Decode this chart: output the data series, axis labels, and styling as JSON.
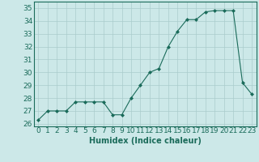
{
  "x": [
    0,
    1,
    2,
    3,
    4,
    5,
    6,
    7,
    8,
    9,
    10,
    11,
    12,
    13,
    14,
    15,
    16,
    17,
    18,
    19,
    20,
    21,
    22,
    23
  ],
  "y": [
    26.3,
    27.0,
    27.0,
    27.0,
    27.7,
    27.7,
    27.7,
    27.7,
    26.7,
    26.7,
    28.0,
    29.0,
    30.0,
    30.3,
    32.0,
    33.2,
    34.1,
    34.1,
    34.7,
    34.8,
    34.8,
    34.8,
    29.2,
    28.3
  ],
  "xlabel": "Humidex (Indice chaleur)",
  "ylim": [
    25.8,
    35.5
  ],
  "xlim": [
    -0.5,
    23.5
  ],
  "yticks": [
    26,
    27,
    28,
    29,
    30,
    31,
    32,
    33,
    34,
    35
  ],
  "xticks": [
    0,
    1,
    2,
    3,
    4,
    5,
    6,
    7,
    8,
    9,
    10,
    11,
    12,
    13,
    14,
    15,
    16,
    17,
    18,
    19,
    20,
    21,
    22,
    23
  ],
  "line_color": "#1a6b5a",
  "marker": "D",
  "marker_size": 2.0,
  "bg_color": "#cce8e8",
  "grid_color": "#aacccc",
  "axis_fontsize": 7,
  "tick_fontsize": 6.5
}
